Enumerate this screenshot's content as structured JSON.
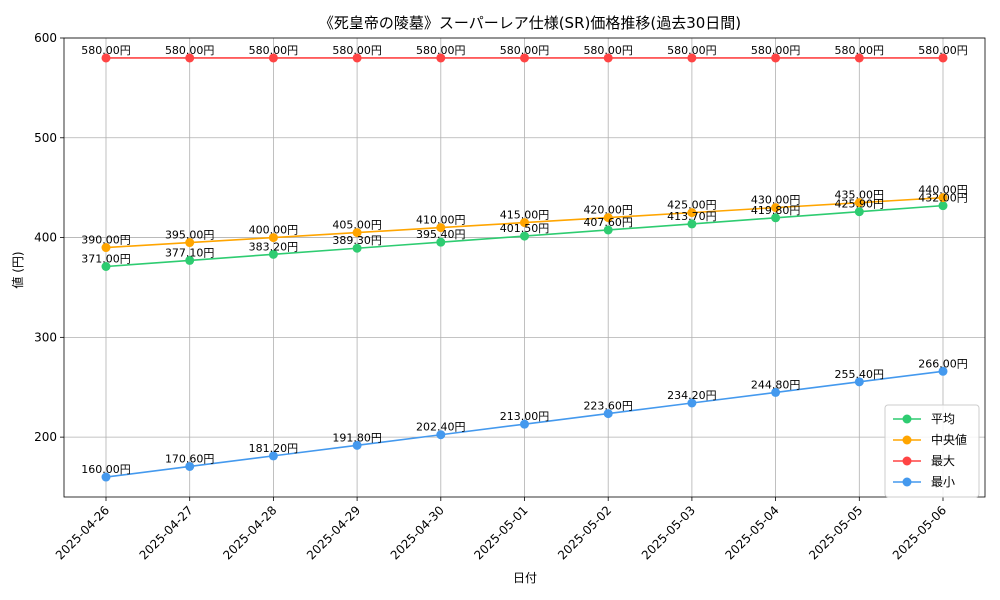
{
  "chart_data": {
    "type": "line",
    "title": "《死皇帝の陵墓》スーパーレア仕様(SR)価格推移(過去30日間)",
    "xlabel": "日付",
    "ylabel": "値 (円)",
    "ylim": [
      140,
      600
    ],
    "yticks": [
      200,
      300,
      400,
      500,
      600
    ],
    "grid": true,
    "legend_position": "lower right",
    "label_suffix": "円",
    "categories": [
      "2025-04-26",
      "2025-04-27",
      "2025-04-28",
      "2025-04-29",
      "2025-04-30",
      "2025-05-01",
      "2025-05-02",
      "2025-05-03",
      "2025-05-04",
      "2025-05-05",
      "2025-05-06"
    ],
    "series": [
      {
        "name": "平均",
        "color": "#2ecc71",
        "values": [
          371.0,
          377.1,
          383.2,
          389.3,
          395.4,
          401.5,
          407.6,
          413.7,
          419.8,
          425.9,
          432.0
        ]
      },
      {
        "name": "中央値",
        "color": "#ffa500",
        "values": [
          390.0,
          395.0,
          400.0,
          405.0,
          410.0,
          415.0,
          420.0,
          425.0,
          430.0,
          435.0,
          440.0
        ]
      },
      {
        "name": "最大",
        "color": "#ff4444",
        "values": [
          580.0,
          580.0,
          580.0,
          580.0,
          580.0,
          580.0,
          580.0,
          580.0,
          580.0,
          580.0,
          580.0
        ]
      },
      {
        "name": "最小",
        "color": "#4499ee",
        "values": [
          160.0,
          170.6,
          181.2,
          191.8,
          202.4,
          213.0,
          223.6,
          234.2,
          244.8,
          255.4,
          266.0
        ]
      }
    ]
  }
}
